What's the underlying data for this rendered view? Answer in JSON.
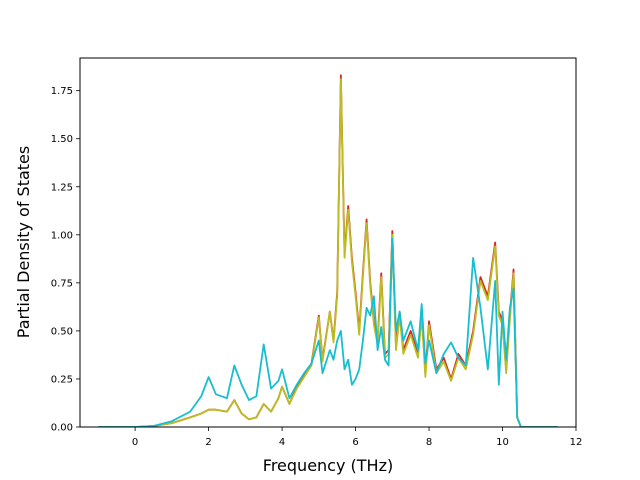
{
  "chart_data": {
    "type": "line",
    "title": "",
    "xlabel": "Frequency (THz)",
    "ylabel": "Partial Density of States",
    "xlim": [
      -1.5,
      12.0
    ],
    "ylim": [
      0.0,
      1.92
    ],
    "xticks": [
      0,
      2,
      4,
      6,
      8,
      10,
      12
    ],
    "xtick_labels": [
      "0",
      "2",
      "4",
      "6",
      "8",
      "10",
      "12"
    ],
    "yticks": [
      0.0,
      0.25,
      0.5,
      0.75,
      1.0,
      1.25,
      1.5,
      1.75
    ],
    "ytick_labels": [
      "0.00",
      "0.25",
      "0.50",
      "0.75",
      "1.00",
      "1.25",
      "1.50",
      "1.75"
    ],
    "grid": false,
    "legend": "none",
    "series": [
      {
        "color": "#d62728",
        "x": [
          -1.0,
          0.0,
          0.5,
          1.0,
          1.5,
          1.8,
          2.0,
          2.2,
          2.5,
          2.7,
          2.9,
          3.1,
          3.3,
          3.5,
          3.7,
          3.9,
          4.0,
          4.2,
          4.4,
          4.6,
          4.8,
          5.0,
          5.1,
          5.3,
          5.4,
          5.5,
          5.6,
          5.7,
          5.8,
          5.9,
          6.0,
          6.1,
          6.2,
          6.3,
          6.4,
          6.5,
          6.6,
          6.7,
          6.8,
          6.9,
          7.0,
          7.1,
          7.2,
          7.3,
          7.5,
          7.7,
          7.8,
          7.9,
          8.0,
          8.2,
          8.4,
          8.6,
          8.8,
          9.0,
          9.2,
          9.4,
          9.6,
          9.8,
          9.9,
          10.0,
          10.1,
          10.2,
          10.3,
          10.4,
          10.5,
          11.0,
          11.5
        ],
        "values": [
          0.0,
          0.0,
          0.005,
          0.02,
          0.05,
          0.07,
          0.09,
          0.09,
          0.08,
          0.14,
          0.07,
          0.04,
          0.05,
          0.12,
          0.08,
          0.15,
          0.21,
          0.12,
          0.21,
          0.27,
          0.33,
          0.58,
          0.35,
          0.6,
          0.45,
          0.7,
          1.83,
          0.9,
          1.15,
          0.88,
          0.7,
          0.5,
          0.8,
          1.08,
          0.75,
          0.55,
          0.45,
          0.8,
          0.38,
          0.4,
          1.02,
          0.42,
          0.6,
          0.4,
          0.5,
          0.38,
          0.6,
          0.28,
          0.55,
          0.3,
          0.36,
          0.25,
          0.38,
          0.32,
          0.5,
          0.78,
          0.68,
          0.96,
          0.6,
          0.55,
          0.3,
          0.58,
          0.82,
          0.05,
          0.0,
          0.0,
          0.0
        ]
      },
      {
        "color": "#bcbd22",
        "x": [
          -1.0,
          0.0,
          0.5,
          1.0,
          1.5,
          1.8,
          2.0,
          2.2,
          2.5,
          2.7,
          2.9,
          3.1,
          3.3,
          3.5,
          3.7,
          3.9,
          4.0,
          4.2,
          4.4,
          4.6,
          4.8,
          5.0,
          5.1,
          5.3,
          5.4,
          5.5,
          5.6,
          5.7,
          5.8,
          5.9,
          6.0,
          6.1,
          6.2,
          6.3,
          6.4,
          6.5,
          6.6,
          6.7,
          6.8,
          6.9,
          7.0,
          7.1,
          7.2,
          7.3,
          7.5,
          7.7,
          7.8,
          7.9,
          8.0,
          8.2,
          8.4,
          8.6,
          8.8,
          9.0,
          9.2,
          9.4,
          9.6,
          9.8,
          9.9,
          10.0,
          10.1,
          10.2,
          10.3,
          10.4,
          10.5,
          11.0,
          11.5
        ],
        "values": [
          0.0,
          0.0,
          0.005,
          0.02,
          0.05,
          0.07,
          0.09,
          0.09,
          0.08,
          0.14,
          0.07,
          0.04,
          0.05,
          0.12,
          0.08,
          0.15,
          0.21,
          0.12,
          0.2,
          0.26,
          0.32,
          0.57,
          0.34,
          0.6,
          0.44,
          0.68,
          1.81,
          0.88,
          1.13,
          0.86,
          0.68,
          0.48,
          0.78,
          1.06,
          0.73,
          0.53,
          0.43,
          0.78,
          0.36,
          0.38,
          1.0,
          0.4,
          0.58,
          0.38,
          0.48,
          0.36,
          0.58,
          0.26,
          0.53,
          0.28,
          0.34,
          0.24,
          0.36,
          0.3,
          0.48,
          0.76,
          0.66,
          0.94,
          0.58,
          0.53,
          0.28,
          0.56,
          0.8,
          0.05,
          0.0,
          0.0,
          0.0
        ]
      },
      {
        "color": "#17becf",
        "x": [
          -1.0,
          0.0,
          0.5,
          1.0,
          1.5,
          1.8,
          2.0,
          2.2,
          2.5,
          2.7,
          2.9,
          3.1,
          3.3,
          3.5,
          3.7,
          3.9,
          4.0,
          4.2,
          4.4,
          4.6,
          4.8,
          5.0,
          5.1,
          5.3,
          5.4,
          5.5,
          5.6,
          5.7,
          5.8,
          5.9,
          6.0,
          6.1,
          6.2,
          6.3,
          6.4,
          6.5,
          6.6,
          6.7,
          6.8,
          6.9,
          7.0,
          7.1,
          7.2,
          7.3,
          7.5,
          7.7,
          7.8,
          7.9,
          8.0,
          8.2,
          8.4,
          8.6,
          8.8,
          9.0,
          9.2,
          9.4,
          9.6,
          9.8,
          9.9,
          10.0,
          10.1,
          10.2,
          10.3,
          10.4,
          10.5,
          11.0,
          11.5
        ],
        "values": [
          0.0,
          0.0,
          0.005,
          0.03,
          0.08,
          0.16,
          0.26,
          0.17,
          0.15,
          0.32,
          0.22,
          0.14,
          0.16,
          0.43,
          0.2,
          0.24,
          0.3,
          0.15,
          0.22,
          0.28,
          0.33,
          0.45,
          0.28,
          0.4,
          0.35,
          0.45,
          0.5,
          0.3,
          0.35,
          0.22,
          0.25,
          0.3,
          0.45,
          0.62,
          0.58,
          0.68,
          0.4,
          0.52,
          0.35,
          0.32,
          0.98,
          0.5,
          0.6,
          0.45,
          0.55,
          0.4,
          0.64,
          0.33,
          0.45,
          0.28,
          0.38,
          0.44,
          0.36,
          0.32,
          0.88,
          0.62,
          0.3,
          0.76,
          0.22,
          0.6,
          0.35,
          0.62,
          0.72,
          0.05,
          0.0,
          0.0,
          0.0
        ]
      }
    ]
  }
}
